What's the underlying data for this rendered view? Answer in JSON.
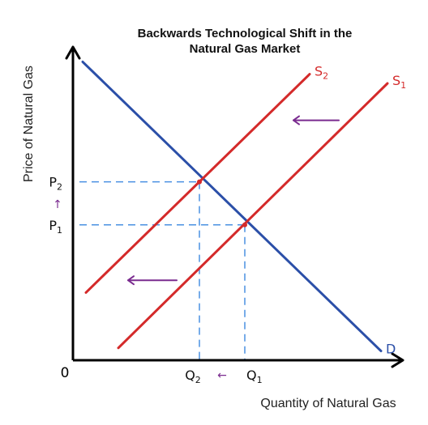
{
  "chart_data": {
    "type": "line",
    "title_line1": "Backwards Technological Shift in the",
    "title_line2": "Natural Gas Market",
    "xlabel": "Quantity of Natural Gas",
    "ylabel": "Price of Natural Gas",
    "origin_label": "0",
    "xlim": [
      0,
      10
    ],
    "ylim": [
      0,
      10
    ],
    "colors": {
      "demand": "#2b4fa8",
      "supply": "#d42a2a",
      "guide": "#4a90e2",
      "arrow": "#7a2b8f",
      "axis": "#000000"
    },
    "series": [
      {
        "name": "D",
        "kind": "demand",
        "x": [
          0.3,
          9.5
        ],
        "y": [
          9.7,
          0.3
        ]
      },
      {
        "name": "S1",
        "kind": "supply",
        "x": [
          1.4,
          9.7
        ],
        "y": [
          0.4,
          9.0
        ]
      },
      {
        "name": "S2",
        "kind": "supply",
        "x": [
          0.4,
          7.3
        ],
        "y": [
          2.2,
          9.3
        ]
      }
    ],
    "equilibria": [
      {
        "q": 5.3,
        "p": 4.4,
        "q_label": "Q",
        "q_sub": "1",
        "p_label": "P",
        "p_sub": "1"
      },
      {
        "q": 3.9,
        "p": 5.8,
        "q_label": "Q",
        "q_sub": "2",
        "p_label": "P",
        "p_sub": "2"
      }
    ],
    "curve_labels": [
      {
        "text": "S",
        "sub": "2",
        "for": "S2"
      },
      {
        "text": "S",
        "sub": "1",
        "for": "S1"
      },
      {
        "text": "D",
        "sub": "",
        "for": "D"
      }
    ],
    "shift_arrows": [
      {
        "from": [
          8.2,
          7.8
        ],
        "to": [
          6.8,
          7.8
        ]
      },
      {
        "from": [
          3.2,
          2.6
        ],
        "to": [
          1.7,
          2.6
        ]
      }
    ],
    "annotation_arrow_p": "↑",
    "annotation_arrow_q": "←"
  }
}
